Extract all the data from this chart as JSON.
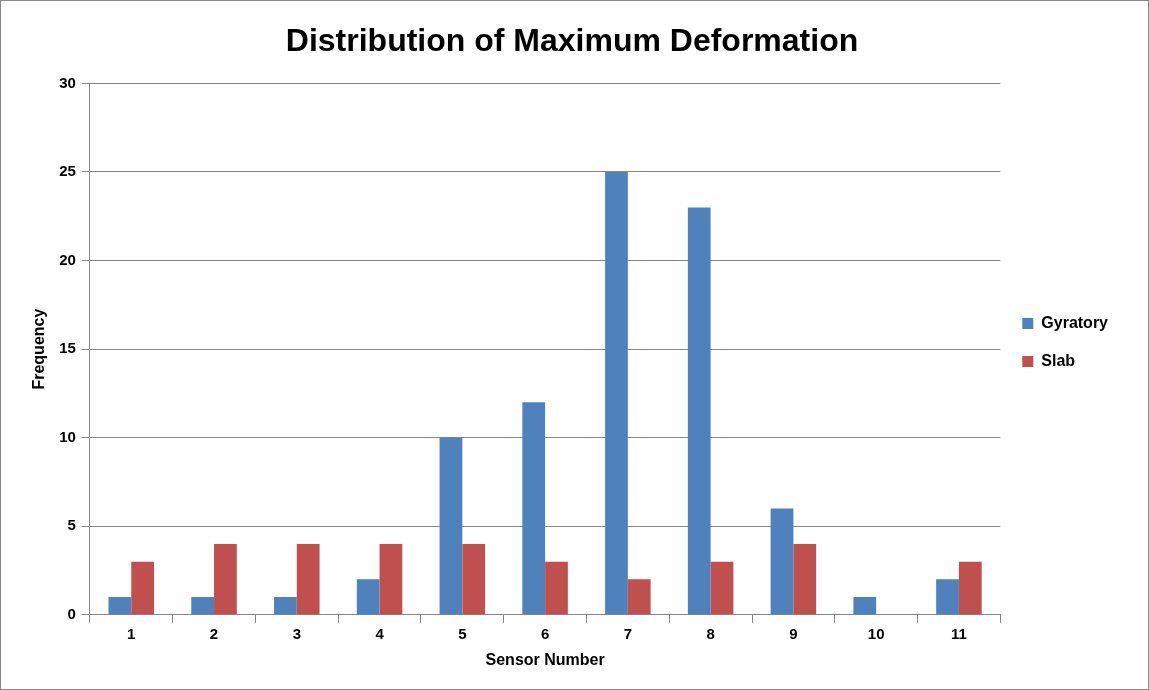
{
  "chart_data": {
    "type": "bar",
    "title": "Distribution of Maximum Deformation",
    "xlabel": "Sensor Number",
    "ylabel": "Frequency",
    "categories": [
      "1",
      "2",
      "3",
      "4",
      "5",
      "6",
      "7",
      "8",
      "9",
      "10",
      "11"
    ],
    "series": [
      {
        "name": "Gyratory",
        "color": "#4f81bd",
        "values": [
          1,
          1,
          1,
          2,
          10,
          12,
          25,
          23,
          6,
          1,
          2
        ]
      },
      {
        "name": "Slab",
        "color": "#c0504d",
        "values": [
          3,
          4,
          4,
          4,
          4,
          3,
          2,
          3,
          4,
          0,
          3
        ]
      }
    ],
    "ylim": [
      0,
      30
    ],
    "yticks": [
      0,
      5,
      10,
      15,
      20,
      25,
      30
    ],
    "grid": "y",
    "legend": "right"
  }
}
